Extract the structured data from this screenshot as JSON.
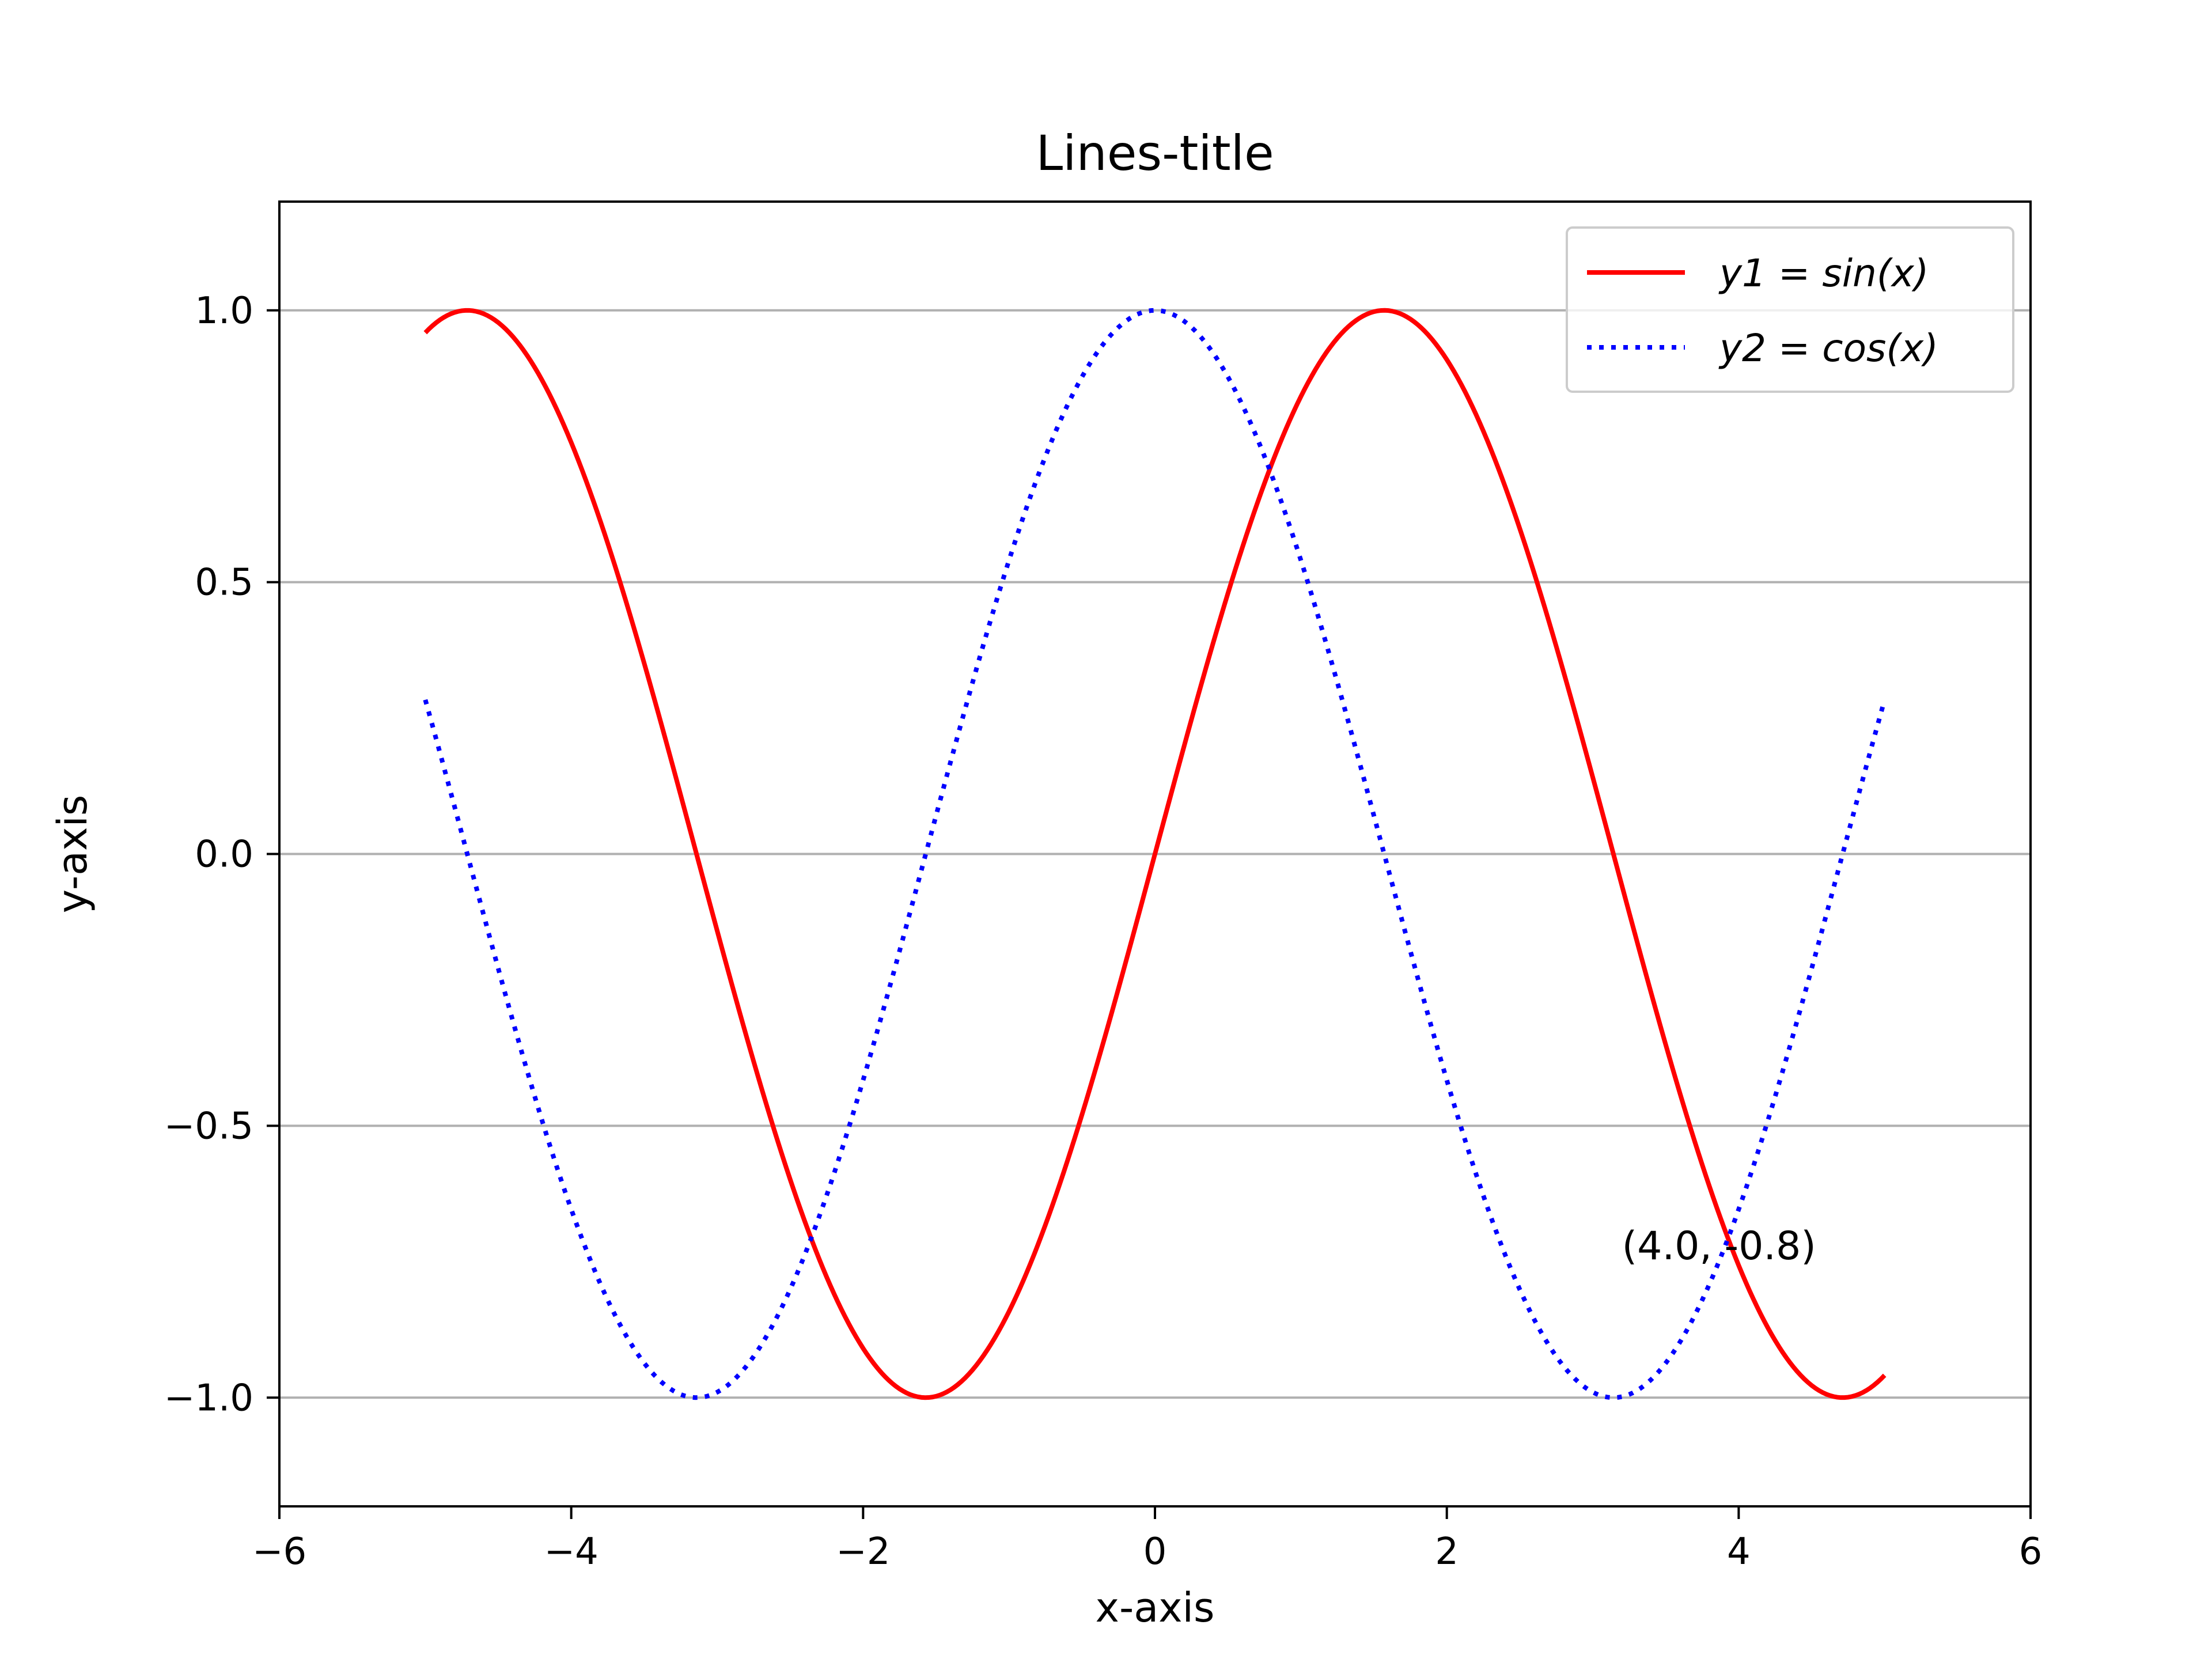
{
  "chart_data": {
    "type": "line",
    "title": "Lines-title",
    "xlabel": "x-axis",
    "ylabel": "y-axis",
    "xlim": [
      -6,
      6
    ],
    "ylim": [
      -1.2,
      1.2
    ],
    "xticks": [
      -6,
      -4,
      -2,
      0,
      2,
      4,
      6
    ],
    "xtick_labels": [
      "−6",
      "−4",
      "−2",
      "0",
      "2",
      "4",
      "6"
    ],
    "yticks": [
      -1.0,
      -0.5,
      0.0,
      0.5,
      1.0
    ],
    "ytick_labels": [
      "−1.0",
      "−0.5",
      "0.0",
      "0.5",
      "1.0"
    ],
    "grid": "y",
    "legend_position": "top-right",
    "x_range": [
      -5,
      5
    ],
    "series": [
      {
        "name": "y1 = sin(x)",
        "function": "sin",
        "color": "#ff0000",
        "style": "solid"
      },
      {
        "name": "y2 = cos(x)",
        "function": "cos",
        "color": "#0000ff",
        "style": "dotted"
      }
    ],
    "annotation": {
      "text": "(4.0, -0.8)",
      "x": 3.2,
      "y": -0.72
    }
  }
}
